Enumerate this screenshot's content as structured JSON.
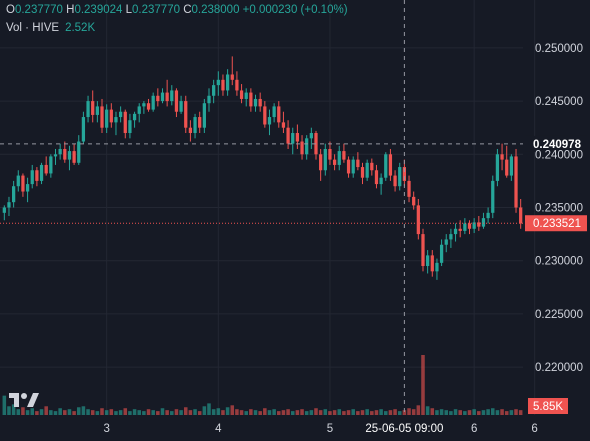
{
  "legend": {
    "open_key": "O",
    "open": "0.237770",
    "high_key": "H",
    "high": "0.239024",
    "low_key": "L",
    "low": "0.237770",
    "close_key": "C",
    "close": "0.238000",
    "change": "+0.000230 (+0.10%)"
  },
  "volume_legend": {
    "label": "Vol · HIVE",
    "value": "2.52K"
  },
  "colors": {
    "up": "#26a69a",
    "down": "#ef5350",
    "background": "#161a25",
    "text": "#d1d4dc"
  },
  "chart_data": {
    "type": "candlestick",
    "title": "",
    "ylim": [
      0.2155,
      0.2545
    ],
    "yticks": [
      "0.250000",
      "0.245000",
      "0.240000",
      "0.235000",
      "0.230000",
      "0.225000",
      "0.220000"
    ],
    "xticks": [
      {
        "label": "3",
        "index": 22
      },
      {
        "label": "4",
        "index": 46
      },
      {
        "label": "5",
        "index": 70
      },
      {
        "label": "6",
        "index": 101
      },
      {
        "label": "6",
        "index": 114
      }
    ],
    "crosshair": {
      "x_label": "25-06-05 09:00",
      "x_index": 86,
      "y_label": "0.240978",
      "y_value": 0.240978
    },
    "last_price": {
      "label": "0.233521",
      "value": 0.233521
    },
    "volume_label": "5.85K",
    "ohlc": [
      [
        0.2345,
        0.2352,
        0.2338,
        0.235
      ],
      [
        0.235,
        0.236,
        0.2342,
        0.2355
      ],
      [
        0.2355,
        0.2375,
        0.235,
        0.237
      ],
      [
        0.237,
        0.2385,
        0.2365,
        0.238
      ],
      [
        0.238,
        0.2382,
        0.236,
        0.2365
      ],
      [
        0.2365,
        0.2378,
        0.2355,
        0.2372
      ],
      [
        0.2372,
        0.239,
        0.2368,
        0.2385
      ],
      [
        0.2385,
        0.2388,
        0.237,
        0.2375
      ],
      [
        0.2375,
        0.2392,
        0.2372,
        0.239
      ],
      [
        0.239,
        0.2398,
        0.238,
        0.2382
      ],
      [
        0.2382,
        0.24,
        0.2378,
        0.2398
      ],
      [
        0.2398,
        0.2405,
        0.239,
        0.24
      ],
      [
        0.24,
        0.241,
        0.2395,
        0.2405
      ],
      [
        0.2405,
        0.2412,
        0.2392,
        0.2395
      ],
      [
        0.2395,
        0.2408,
        0.2385,
        0.2403
      ],
      [
        0.2403,
        0.241,
        0.239,
        0.2392
      ],
      [
        0.2392,
        0.2418,
        0.239,
        0.2412
      ],
      [
        0.2412,
        0.244,
        0.241,
        0.2435
      ],
      [
        0.2435,
        0.2455,
        0.243,
        0.245
      ],
      [
        0.245,
        0.246,
        0.243,
        0.2437
      ],
      [
        0.2437,
        0.245,
        0.243,
        0.2445
      ],
      [
        0.2445,
        0.2452,
        0.242,
        0.2425
      ],
      [
        0.2425,
        0.2447,
        0.242,
        0.2442
      ],
      [
        0.2442,
        0.2448,
        0.2425,
        0.243
      ],
      [
        0.243,
        0.244,
        0.2418,
        0.2435
      ],
      [
        0.2435,
        0.2445,
        0.243,
        0.244
      ],
      [
        0.244,
        0.2442,
        0.2415,
        0.242
      ],
      [
        0.242,
        0.2438,
        0.2415,
        0.2432
      ],
      [
        0.2432,
        0.244,
        0.2425,
        0.2438
      ],
      [
        0.2438,
        0.2448,
        0.243,
        0.2445
      ],
      [
        0.2445,
        0.245,
        0.2438,
        0.2448
      ],
      [
        0.2448,
        0.2452,
        0.244,
        0.2442
      ],
      [
        0.2442,
        0.2458,
        0.244,
        0.2455
      ],
      [
        0.2455,
        0.2462,
        0.2445,
        0.245
      ],
      [
        0.245,
        0.2462,
        0.2448,
        0.2458
      ],
      [
        0.2458,
        0.247,
        0.2445,
        0.245
      ],
      [
        0.245,
        0.2465,
        0.2446,
        0.246
      ],
      [
        0.246,
        0.2462,
        0.2435,
        0.244
      ],
      [
        0.244,
        0.2455,
        0.2438,
        0.245
      ],
      [
        0.245,
        0.2455,
        0.242,
        0.2425
      ],
      [
        0.2425,
        0.2432,
        0.2412,
        0.242
      ],
      [
        0.242,
        0.2438,
        0.2415,
        0.2435
      ],
      [
        0.2435,
        0.244,
        0.242,
        0.2425
      ],
      [
        0.2425,
        0.2452,
        0.242,
        0.2448
      ],
      [
        0.2448,
        0.2462,
        0.244,
        0.2455
      ],
      [
        0.2455,
        0.247,
        0.2448,
        0.2465
      ],
      [
        0.2465,
        0.2478,
        0.2455,
        0.247
      ],
      [
        0.247,
        0.2475,
        0.2455,
        0.246
      ],
      [
        0.246,
        0.248,
        0.2455,
        0.2475
      ],
      [
        0.2475,
        0.2492,
        0.2465,
        0.247
      ],
      [
        0.247,
        0.2478,
        0.2455,
        0.246
      ],
      [
        0.246,
        0.2466,
        0.2448,
        0.2452
      ],
      [
        0.2452,
        0.2462,
        0.2445,
        0.2458
      ],
      [
        0.2458,
        0.2462,
        0.244,
        0.2445
      ],
      [
        0.2445,
        0.2456,
        0.244,
        0.2452
      ],
      [
        0.2452,
        0.2458,
        0.244,
        0.2445
      ],
      [
        0.2445,
        0.245,
        0.2425,
        0.2428
      ],
      [
        0.2428,
        0.2442,
        0.2418,
        0.2435
      ],
      [
        0.2435,
        0.2448,
        0.243,
        0.2445
      ],
      [
        0.2445,
        0.245,
        0.2425,
        0.243
      ],
      [
        0.243,
        0.244,
        0.242,
        0.2425
      ],
      [
        0.2425,
        0.2432,
        0.2405,
        0.241
      ],
      [
        0.241,
        0.2425,
        0.24,
        0.242
      ],
      [
        0.242,
        0.2428,
        0.2405,
        0.2412
      ],
      [
        0.2412,
        0.2418,
        0.2395,
        0.24
      ],
      [
        0.24,
        0.2418,
        0.2395,
        0.2415
      ],
      [
        0.2415,
        0.2425,
        0.2405,
        0.242
      ],
      [
        0.242,
        0.2422,
        0.2395,
        0.24
      ],
      [
        0.24,
        0.2405,
        0.2375,
        0.2385
      ],
      [
        0.2385,
        0.241,
        0.238,
        0.2405
      ],
      [
        0.2405,
        0.2412,
        0.239,
        0.2395
      ],
      [
        0.2395,
        0.24,
        0.2385,
        0.239
      ],
      [
        0.239,
        0.2408,
        0.2385,
        0.2403
      ],
      [
        0.2403,
        0.241,
        0.2392,
        0.2395
      ],
      [
        0.2395,
        0.2398,
        0.2378,
        0.2382
      ],
      [
        0.2382,
        0.2398,
        0.2378,
        0.2395
      ],
      [
        0.2395,
        0.2402,
        0.2385,
        0.2388
      ],
      [
        0.2388,
        0.2392,
        0.2372,
        0.2378
      ],
      [
        0.2378,
        0.2395,
        0.2375,
        0.2392
      ],
      [
        0.2392,
        0.2396,
        0.238,
        0.2385
      ],
      [
        0.2385,
        0.239,
        0.2368,
        0.2372
      ],
      [
        0.2372,
        0.2382,
        0.2362,
        0.2378
      ],
      [
        0.2378,
        0.2402,
        0.2375,
        0.24
      ],
      [
        0.24,
        0.2405,
        0.2375,
        0.238
      ],
      [
        0.238,
        0.2385,
        0.2365,
        0.237
      ],
      [
        0.237,
        0.2392,
        0.2366,
        0.2388
      ],
      [
        0.2388,
        0.2395,
        0.237,
        0.2375
      ],
      [
        0.2375,
        0.238,
        0.2355,
        0.236
      ],
      [
        0.236,
        0.2365,
        0.2348,
        0.2352
      ],
      [
        0.2352,
        0.2358,
        0.232,
        0.2325
      ],
      [
        0.2325,
        0.233,
        0.229,
        0.2295
      ],
      [
        0.2295,
        0.231,
        0.2288,
        0.2305
      ],
      [
        0.2305,
        0.231,
        0.2285,
        0.229
      ],
      [
        0.229,
        0.2302,
        0.2282,
        0.2298
      ],
      [
        0.2298,
        0.232,
        0.2295,
        0.2315
      ],
      [
        0.2315,
        0.2325,
        0.2308,
        0.232
      ],
      [
        0.232,
        0.233,
        0.2312,
        0.2325
      ],
      [
        0.2325,
        0.2335,
        0.2318,
        0.233
      ],
      [
        0.233,
        0.2338,
        0.2322,
        0.2328
      ],
      [
        0.2328,
        0.234,
        0.2325,
        0.2335
      ],
      [
        0.2335,
        0.2338,
        0.2325,
        0.233
      ],
      [
        0.233,
        0.234,
        0.2326,
        0.2336
      ],
      [
        0.2336,
        0.2342,
        0.2328,
        0.2332
      ],
      [
        0.2332,
        0.2345,
        0.233,
        0.234
      ],
      [
        0.234,
        0.235,
        0.2335,
        0.2345
      ],
      [
        0.2345,
        0.238,
        0.234,
        0.2375
      ],
      [
        0.2375,
        0.2405,
        0.237,
        0.24
      ],
      [
        0.24,
        0.241,
        0.2385,
        0.2395
      ],
      [
        0.2395,
        0.2408,
        0.2378,
        0.238
      ],
      [
        0.238,
        0.24,
        0.2375,
        0.2398
      ],
      [
        0.2398,
        0.2405,
        0.2345,
        0.235
      ],
      [
        0.235,
        0.2358,
        0.233,
        0.2335
      ]
    ],
    "volumes": [
      2.0,
      0.9,
      1.1,
      0.6,
      0.8,
      0.5,
      0.7,
      0.4,
      0.6,
      0.9,
      0.5,
      0.4,
      0.7,
      0.5,
      0.6,
      0.4,
      0.8,
      0.9,
      0.6,
      0.5,
      0.4,
      0.7,
      0.5,
      0.6,
      0.4,
      0.5,
      0.7,
      0.4,
      0.6,
      0.5,
      0.4,
      0.6,
      0.5,
      0.4,
      0.7,
      0.5,
      0.4,
      0.6,
      0.5,
      0.8,
      0.5,
      0.6,
      0.4,
      0.9,
      1.2,
      0.6,
      0.7,
      0.5,
      0.8,
      1.0,
      0.6,
      0.5,
      0.4,
      0.6,
      0.5,
      0.4,
      0.7,
      0.5,
      0.6,
      0.4,
      0.5,
      0.6,
      0.4,
      0.5,
      0.6,
      0.4,
      0.5,
      0.7,
      0.5,
      0.6,
      0.4,
      0.5,
      0.6,
      0.4,
      0.5,
      0.6,
      0.4,
      0.5,
      0.6,
      0.4,
      0.5,
      0.6,
      0.4,
      0.5,
      0.6,
      0.4,
      0.5,
      0.7,
      0.6,
      1.0,
      6.2,
      0.9,
      0.7,
      0.5,
      0.6,
      0.5,
      0.4,
      0.6,
      0.5,
      0.4,
      0.5,
      0.6,
      0.4,
      0.5,
      0.6,
      0.7,
      0.5,
      0.6,
      0.4,
      0.5,
      0.6,
      0.5
    ]
  }
}
